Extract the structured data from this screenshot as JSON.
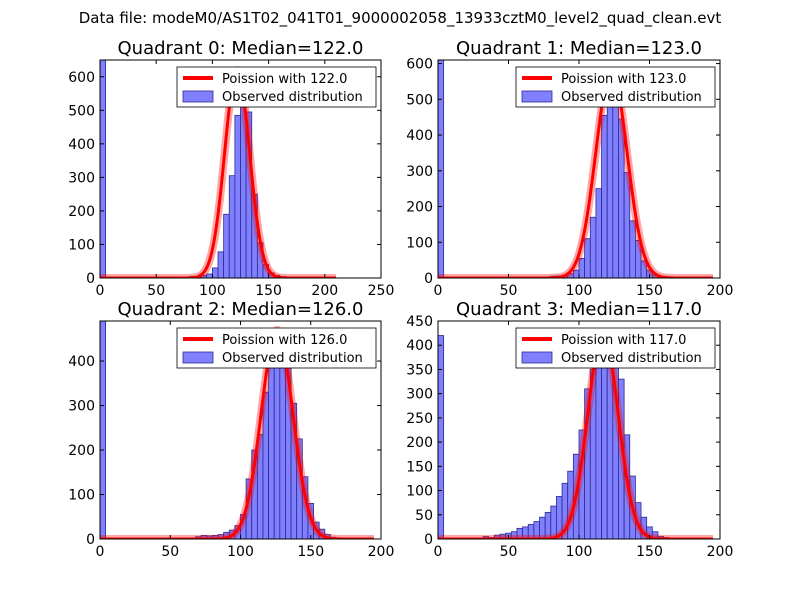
{
  "figure_title": "Data file: modeM0/AS1T02_041T01_9000002058_13933cztM0_level2_quad_clean.evt",
  "colors": {
    "bar_fill": "#8080ff",
    "bar_edge": "#2a2a90",
    "fit_line": "#ff0000",
    "axis": "#000000",
    "background": "#ffffff"
  },
  "chart_data": [
    {
      "type": "bar",
      "title": "Quadrant 0: Median=122.0",
      "xlim": [
        0,
        250
      ],
      "ylim": [
        0,
        650
      ],
      "xticks": [
        0,
        50,
        100,
        150,
        200,
        250
      ],
      "xtick_labels": [
        "0",
        "50",
        "100",
        "150",
        "200",
        "250"
      ],
      "yticks": [
        0,
        100,
        200,
        300,
        400,
        500,
        600
      ],
      "ytick_labels": [
        "0",
        "100",
        "200",
        "300",
        "400",
        "500",
        "600"
      ],
      "legend": {
        "position": "top-right",
        "line_label": "Poission with 122.0",
        "bar_label": "Observed distribution"
      },
      "bin_width": 5,
      "bars": [
        {
          "x": 0,
          "y": 650
        },
        {
          "x": 75,
          "y": 3
        },
        {
          "x": 80,
          "y": 5
        },
        {
          "x": 85,
          "y": 3
        },
        {
          "x": 90,
          "y": 8
        },
        {
          "x": 95,
          "y": 12
        },
        {
          "x": 100,
          "y": 30
        },
        {
          "x": 105,
          "y": 78
        },
        {
          "x": 110,
          "y": 190
        },
        {
          "x": 115,
          "y": 305
        },
        {
          "x": 120,
          "y": 485
        },
        {
          "x": 125,
          "y": 545
        },
        {
          "x": 130,
          "y": 495
        },
        {
          "x": 135,
          "y": 250
        },
        {
          "x": 140,
          "y": 105
        },
        {
          "x": 145,
          "y": 40
        },
        {
          "x": 150,
          "y": 15
        },
        {
          "x": 155,
          "y": 8
        },
        {
          "x": 160,
          "y": 4
        },
        {
          "x": 165,
          "y": 2
        }
      ],
      "fit": {
        "mean": 122.0,
        "peak": 620,
        "x_range": [
          0,
          210
        ]
      }
    },
    {
      "type": "bar",
      "title": "Quadrant 1: Median=123.0",
      "xlim": [
        0,
        200
      ],
      "ylim": [
        0,
        610
      ],
      "xticks": [
        0,
        50,
        100,
        150,
        200
      ],
      "xtick_labels": [
        "0",
        "50",
        "100",
        "150",
        "200"
      ],
      "yticks": [
        0,
        100,
        200,
        300,
        400,
        500,
        600
      ],
      "ytick_labels": [
        "0",
        "100",
        "200",
        "300",
        "400",
        "500",
        "600"
      ],
      "legend": {
        "position": "top-right",
        "line_label": "Poission with 123.0",
        "bar_label": "Observed distribution"
      },
      "bin_width": 4,
      "bars": [
        {
          "x": 0,
          "y": 610
        },
        {
          "x": 76,
          "y": 3
        },
        {
          "x": 80,
          "y": 5
        },
        {
          "x": 84,
          "y": 6
        },
        {
          "x": 88,
          "y": 8
        },
        {
          "x": 92,
          "y": 12
        },
        {
          "x": 96,
          "y": 22
        },
        {
          "x": 100,
          "y": 55
        },
        {
          "x": 104,
          "y": 110
        },
        {
          "x": 108,
          "y": 170
        },
        {
          "x": 112,
          "y": 250
        },
        {
          "x": 116,
          "y": 455
        },
        {
          "x": 120,
          "y": 545
        },
        {
          "x": 124,
          "y": 510
        },
        {
          "x": 128,
          "y": 445
        },
        {
          "x": 132,
          "y": 295
        },
        {
          "x": 136,
          "y": 160
        },
        {
          "x": 140,
          "y": 105
        },
        {
          "x": 144,
          "y": 48
        },
        {
          "x": 148,
          "y": 22
        },
        {
          "x": 152,
          "y": 8
        },
        {
          "x": 156,
          "y": 4
        },
        {
          "x": 160,
          "y": 2
        }
      ],
      "fit": {
        "mean": 123.0,
        "peak": 580,
        "x_range": [
          0,
          195
        ]
      }
    },
    {
      "type": "bar",
      "title": "Quadrant 2: Median=126.0",
      "xlim": [
        0,
        200
      ],
      "ylim": [
        0,
        490
      ],
      "xticks": [
        0,
        50,
        100,
        150,
        200
      ],
      "xtick_labels": [
        "0",
        "50",
        "100",
        "150",
        "200"
      ],
      "yticks": [
        0,
        100,
        200,
        300,
        400
      ],
      "ytick_labels": [
        "0",
        "100",
        "200",
        "300",
        "400"
      ],
      "legend": {
        "position": "top-right",
        "line_label": "Poission with 126.0",
        "bar_label": "Observed distribution"
      },
      "bin_width": 4,
      "bars": [
        {
          "x": 0,
          "y": 490
        },
        {
          "x": 68,
          "y": 5
        },
        {
          "x": 72,
          "y": 8
        },
        {
          "x": 76,
          "y": 7
        },
        {
          "x": 80,
          "y": 8
        },
        {
          "x": 84,
          "y": 10
        },
        {
          "x": 88,
          "y": 15
        },
        {
          "x": 92,
          "y": 20
        },
        {
          "x": 96,
          "y": 30
        },
        {
          "x": 100,
          "y": 55
        },
        {
          "x": 104,
          "y": 135
        },
        {
          "x": 108,
          "y": 200
        },
        {
          "x": 112,
          "y": 235
        },
        {
          "x": 116,
          "y": 330
        },
        {
          "x": 120,
          "y": 395
        },
        {
          "x": 124,
          "y": 445
        },
        {
          "x": 128,
          "y": 450
        },
        {
          "x": 132,
          "y": 405
        },
        {
          "x": 136,
          "y": 305
        },
        {
          "x": 140,
          "y": 225
        },
        {
          "x": 144,
          "y": 140
        },
        {
          "x": 148,
          "y": 80
        },
        {
          "x": 152,
          "y": 38
        },
        {
          "x": 156,
          "y": 22
        },
        {
          "x": 160,
          "y": 10
        },
        {
          "x": 164,
          "y": 4
        },
        {
          "x": 168,
          "y": 2
        }
      ],
      "fit": {
        "mean": 126.0,
        "peak": 470,
        "x_range": [
          0,
          195
        ]
      }
    },
    {
      "type": "bar",
      "title": "Quadrant 3: Median=117.0",
      "xlim": [
        0,
        200
      ],
      "ylim": [
        0,
        450
      ],
      "xticks": [
        0,
        50,
        100,
        150,
        200
      ],
      "xtick_labels": [
        "0",
        "50",
        "100",
        "150",
        "200"
      ],
      "yticks": [
        0,
        50,
        100,
        150,
        200,
        250,
        300,
        350,
        400,
        450
      ],
      "ytick_labels": [
        "0",
        "50",
        "100",
        "150",
        "200",
        "250",
        "300",
        "350",
        "400",
        "450"
      ],
      "legend": {
        "position": "top-right",
        "line_label": "Poission with 117.0",
        "bar_label": "Observed distribution"
      },
      "bin_width": 4,
      "bars": [
        {
          "x": 0,
          "y": 420
        },
        {
          "x": 32,
          "y": 5
        },
        {
          "x": 36,
          "y": 3
        },
        {
          "x": 40,
          "y": 8
        },
        {
          "x": 44,
          "y": 10
        },
        {
          "x": 48,
          "y": 12
        },
        {
          "x": 52,
          "y": 15
        },
        {
          "x": 56,
          "y": 22
        },
        {
          "x": 60,
          "y": 25
        },
        {
          "x": 64,
          "y": 30
        },
        {
          "x": 68,
          "y": 36
        },
        {
          "x": 72,
          "y": 45
        },
        {
          "x": 76,
          "y": 55
        },
        {
          "x": 80,
          "y": 68
        },
        {
          "x": 84,
          "y": 88
        },
        {
          "x": 88,
          "y": 115
        },
        {
          "x": 92,
          "y": 140
        },
        {
          "x": 96,
          "y": 175
        },
        {
          "x": 100,
          "y": 225
        },
        {
          "x": 104,
          "y": 310
        },
        {
          "x": 108,
          "y": 350
        },
        {
          "x": 112,
          "y": 385
        },
        {
          "x": 116,
          "y": 395
        },
        {
          "x": 120,
          "y": 420
        },
        {
          "x": 124,
          "y": 400
        },
        {
          "x": 128,
          "y": 330
        },
        {
          "x": 132,
          "y": 215
        },
        {
          "x": 136,
          "y": 130
        },
        {
          "x": 140,
          "y": 75
        },
        {
          "x": 144,
          "y": 45
        },
        {
          "x": 148,
          "y": 25
        },
        {
          "x": 152,
          "y": 15
        },
        {
          "x": 156,
          "y": 5
        },
        {
          "x": 160,
          "y": 3
        }
      ],
      "fit": {
        "mean": 117.0,
        "peak": 425,
        "x_range": [
          0,
          195
        ]
      }
    }
  ]
}
